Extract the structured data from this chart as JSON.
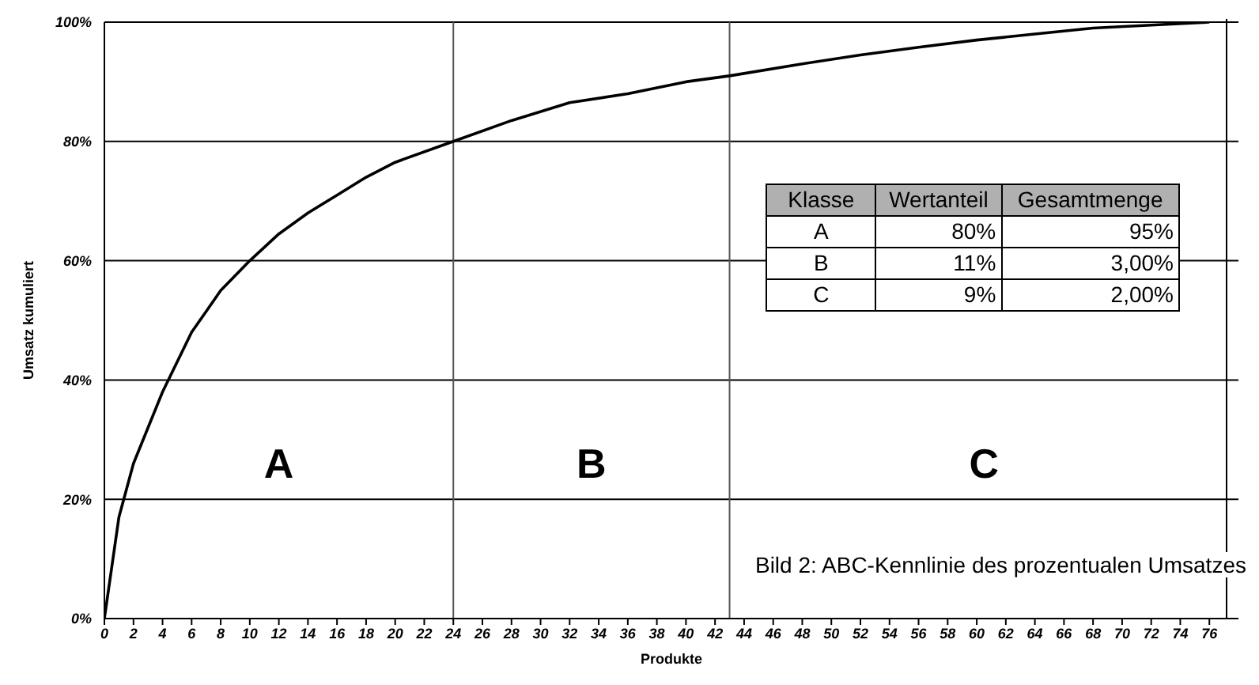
{
  "chart_data": {
    "type": "line",
    "xlabel": "Produkte",
    "ylabel": "Umsatz kumuliert",
    "x": [
      0,
      1,
      2,
      4,
      6,
      8,
      10,
      12,
      14,
      16,
      18,
      20,
      24,
      28,
      32,
      36,
      40,
      43,
      48,
      52,
      56,
      60,
      64,
      68,
      72,
      76
    ],
    "series": [
      {
        "color": "#000000",
        "values": [
          0,
          17,
          26,
          38,
          48,
          55,
          60,
          64.5,
          68,
          71,
          74,
          76.5,
          80,
          83.5,
          86.5,
          88,
          90,
          91,
          93,
          94.5,
          95.8,
          97,
          98,
          99,
          99.5,
          100
        ]
      }
    ],
    "xlim": [
      0,
      78
    ],
    "xticks": [
      0,
      2,
      4,
      6,
      8,
      10,
      12,
      14,
      16,
      18,
      20,
      22,
      24,
      26,
      28,
      30,
      32,
      34,
      36,
      38,
      40,
      42,
      44,
      46,
      48,
      50,
      52,
      54,
      56,
      58,
      60,
      62,
      64,
      66,
      68,
      70,
      72,
      74,
      76
    ],
    "ylim": [
      0,
      100
    ],
    "yticks": [
      {
        "value": 0,
        "label": "0%"
      },
      {
        "value": 20,
        "label": "20%"
      },
      {
        "value": 40,
        "label": "40%"
      },
      {
        "value": 60,
        "label": "60%"
      },
      {
        "value": 80,
        "label": "80%"
      },
      {
        "value": 100,
        "label": "100%"
      }
    ],
    "grid": "y",
    "marker": "none",
    "line_style": "solid",
    "ref_lines": [
      {
        "axis": "x",
        "value": 24,
        "color": "#555555"
      },
      {
        "axis": "x",
        "value": 43,
        "color": "#555555"
      }
    ],
    "annotations": [
      "Bild 2: ABC-Kennlinie des prozentualen Umsatzes",
      "Klasse",
      "Wertanteil",
      "Gesamtmenge",
      "A",
      "80%",
      "95%",
      "B",
      "11%",
      "3,00%",
      "C",
      "9%",
      "2,00%",
      "A",
      "B",
      "C"
    ]
  }
}
